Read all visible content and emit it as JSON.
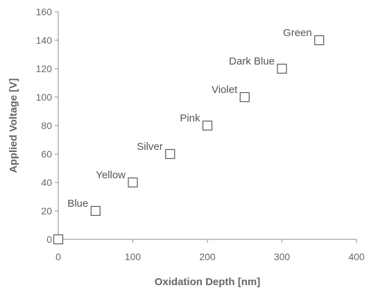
{
  "chart_data": {
    "type": "scatter",
    "xlabel": "Oxidation Depth [nm]",
    "ylabel": "Applied Voltage [V]",
    "xlim": [
      0,
      400
    ],
    "ylim": [
      0,
      160
    ],
    "xticks": [
      "0",
      "100",
      "200",
      "300",
      "400"
    ],
    "yticks": [
      "0",
      "20",
      "40",
      "60",
      "80",
      "100",
      "120",
      "140",
      "160"
    ],
    "grid": false,
    "marker": "open-square",
    "points": [
      {
        "x": 0,
        "y": 0,
        "label": ""
      },
      {
        "x": 50,
        "y": 20,
        "label": "Blue"
      },
      {
        "x": 100,
        "y": 40,
        "label": "Yellow"
      },
      {
        "x": 150,
        "y": 60,
        "label": "Silver"
      },
      {
        "x": 200,
        "y": 80,
        "label": "Pink"
      },
      {
        "x": 250,
        "y": 100,
        "label": "Violet"
      },
      {
        "x": 300,
        "y": 120,
        "label": "Dark Blue"
      },
      {
        "x": 350,
        "y": 140,
        "label": "Green"
      }
    ],
    "colors": {
      "axis": "#8a8a8a",
      "text": "#666666",
      "marker": "#555555"
    }
  }
}
